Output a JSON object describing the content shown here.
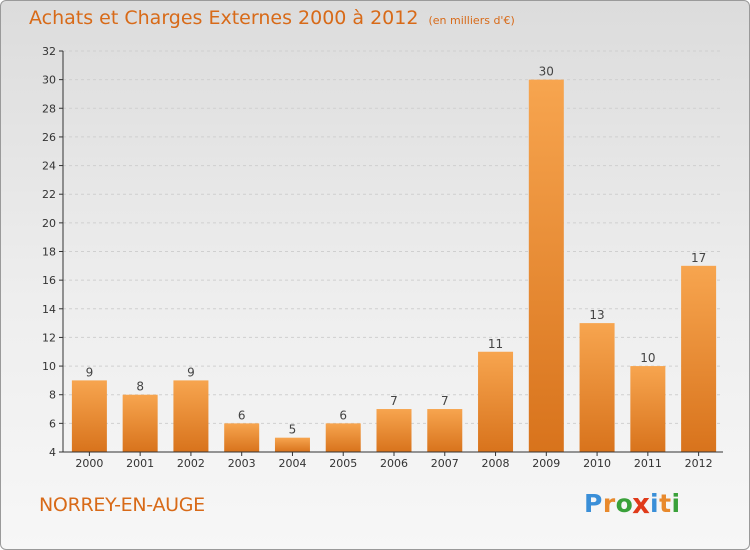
{
  "header": {
    "title": "Achats et Charges Externes 2000 à 2012",
    "unit": "(en milliers d'€)"
  },
  "footer": {
    "commune": "NORREY-EN-AUGE",
    "logo_letters": [
      "P",
      "r",
      "o",
      "x",
      "i",
      "t",
      "i"
    ],
    "logo_colors": [
      "#3a8fd8",
      "#e8892c",
      "#3aa13a",
      "#e03a1a",
      "#3a8fd8",
      "#e8892c",
      "#3aa13a"
    ]
  },
  "colors": {
    "bar_light": "#f7a54f",
    "bar_dark": "#d8731c",
    "axis": "#333333",
    "grid": "#cfcfcf"
  },
  "chart_data": {
    "type": "bar",
    "categories": [
      "2000",
      "2001",
      "2002",
      "2003",
      "2004",
      "2005",
      "2006",
      "2007",
      "2008",
      "2009",
      "2010",
      "2011",
      "2012"
    ],
    "values": [
      9,
      8,
      9,
      6,
      5,
      6,
      7,
      7,
      11,
      30,
      13,
      10,
      17
    ],
    "data_labels": [
      "9",
      "8",
      "9",
      "6",
      "5",
      "6",
      "7",
      "7",
      "11",
      "30",
      "13",
      "10",
      "17"
    ],
    "yticks": [
      4,
      6,
      8,
      10,
      12,
      14,
      16,
      18,
      20,
      22,
      24,
      26,
      28,
      30,
      32
    ],
    "ylim": [
      4,
      32
    ],
    "grid": true,
    "title": "Achats et Charges Externes 2000 à 2012",
    "xlabel": "",
    "ylabel": ""
  }
}
